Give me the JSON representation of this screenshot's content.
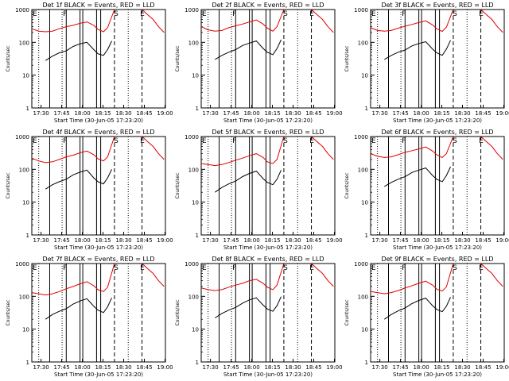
{
  "chart_data": [
    {
      "type": "line",
      "title": "Det 1f BLACK = Events, RED = LLD",
      "ylabel": "Counts/sec",
      "xlabel": "Start Time (30-Jun-05 17:23:20)",
      "x_unit": "minutes since 17:23:20",
      "xlim": [
        0,
        97
      ],
      "ylim": [
        1,
        1000
      ],
      "yscale": "log",
      "xtick_labels": [
        "17:30",
        "17:45",
        "18:00",
        "18:15",
        "18:30",
        "18:45",
        "19:00"
      ],
      "ytick_labels": [
        "1",
        "10",
        "100",
        "1000"
      ],
      "event_markers": [
        "E",
        "F",
        "S",
        "E"
      ],
      "series": [
        {
          "name": "RED = LLD",
          "color": "#e00000",
          "x": [
            0,
            5,
            10,
            15,
            20,
            25,
            30,
            35,
            40,
            45,
            48,
            52,
            55,
            60
          ],
          "y": [
            260,
            220,
            210,
            220,
            260,
            300,
            330,
            380,
            420,
            330,
            250,
            210,
            280,
            1000
          ]
        },
        {
          "name": "BLACK = Events",
          "color": "#000000",
          "x": [
            10,
            15,
            20,
            25,
            30,
            35,
            40,
            45,
            48,
            52,
            55,
            58
          ],
          "y": [
            28,
            38,
            48,
            55,
            75,
            90,
            100,
            60,
            45,
            40,
            60,
            110
          ]
        },
        {
          "name": "RED = LLD (late)",
          "color": "#e00000",
          "x": [
            80,
            84,
            88,
            92,
            96
          ],
          "y": [
            1000,
            700,
            500,
            300,
            200
          ]
        }
      ]
    },
    {
      "type": "line",
      "title": "Det 2f BLACK = Events, RED = LLD",
      "ylabel": "Counts/sec",
      "xlabel": "Start Time (30-Jun-05 17:23:20)",
      "x_unit": "minutes since 17:23:20",
      "xlim": [
        0,
        97
      ],
      "ylim": [
        1,
        1000
      ],
      "yscale": "log",
      "xtick_labels": [
        "17:30",
        "17:45",
        "18:00",
        "18:15",
        "18:30",
        "18:45",
        "19:00"
      ],
      "ytick_labels": [
        "1",
        "10",
        "100",
        "1000"
      ],
      "event_markers": [
        "E",
        "F",
        "S",
        "E"
      ],
      "series": [
        {
          "name": "RED = LLD",
          "color": "#e00000",
          "x": [
            0,
            5,
            10,
            15,
            20,
            25,
            30,
            35,
            40,
            45,
            48,
            52,
            55,
            60
          ],
          "y": [
            300,
            240,
            220,
            230,
            280,
            320,
            360,
            420,
            480,
            360,
            270,
            220,
            300,
            1000
          ]
        },
        {
          "name": "BLACK = Events",
          "color": "#000000",
          "x": [
            10,
            15,
            20,
            25,
            30,
            35,
            40,
            45,
            48,
            52,
            55,
            58
          ],
          "y": [
            30,
            40,
            50,
            60,
            80,
            95,
            110,
            65,
            50,
            42,
            65,
            120
          ]
        },
        {
          "name": "RED = LLD (late)",
          "color": "#e00000",
          "x": [
            80,
            84,
            88,
            92,
            96
          ],
          "y": [
            1000,
            700,
            500,
            300,
            200
          ]
        }
      ]
    },
    {
      "type": "line",
      "title": "Det 3f BLACK = Events, RED = LLD",
      "ylabel": "Counts/sec",
      "xlabel": "Start Time (30-Jun-05 17:23:20)",
      "x_unit": "minutes since 17:23:20",
      "xlim": [
        0,
        97
      ],
      "ylim": [
        1,
        1000
      ],
      "yscale": "log",
      "xtick_labels": [
        "17:30",
        "17:45",
        "18:00",
        "18:15",
        "18:30",
        "18:45",
        "19:00"
      ],
      "ytick_labels": [
        "1",
        "10",
        "100",
        "1000"
      ],
      "event_markers": [
        "E",
        "F",
        "S",
        "E"
      ],
      "series": [
        {
          "name": "RED = LLD",
          "color": "#e00000",
          "x": [
            0,
            5,
            10,
            15,
            20,
            25,
            30,
            35,
            40,
            45,
            48,
            52,
            55,
            60
          ],
          "y": [
            280,
            230,
            220,
            230,
            270,
            310,
            350,
            400,
            450,
            340,
            260,
            215,
            290,
            1000
          ]
        },
        {
          "name": "BLACK = Events",
          "color": "#000000",
          "x": [
            10,
            15,
            20,
            25,
            30,
            35,
            40,
            45,
            48,
            52,
            55,
            58
          ],
          "y": [
            30,
            40,
            50,
            58,
            78,
            92,
            105,
            62,
            48,
            40,
            62,
            115
          ]
        },
        {
          "name": "RED = LLD (late)",
          "color": "#e00000",
          "x": [
            80,
            84,
            88,
            92,
            96
          ],
          "y": [
            1000,
            700,
            500,
            300,
            200
          ]
        }
      ]
    },
    {
      "type": "line",
      "title": "Det 4f BLACK = Events, RED = LLD",
      "ylabel": "Counts/sec",
      "xlabel": "Start Time (30-Jun-05 17:23:20)",
      "x_unit": "minutes since 17:23:20",
      "xlim": [
        0,
        97
      ],
      "ylim": [
        1,
        1000
      ],
      "yscale": "log",
      "xtick_labels": [
        "17:30",
        "17:45",
        "18:00",
        "18:15",
        "18:30",
        "18:45",
        "19:00"
      ],
      "ytick_labels": [
        "1",
        "10",
        "100",
        "1000"
      ],
      "event_markers": [
        "E",
        "F",
        "S",
        "E"
      ],
      "series": [
        {
          "name": "RED = LLD",
          "color": "#e00000",
          "x": [
            0,
            5,
            10,
            15,
            20,
            25,
            30,
            35,
            40,
            45,
            48,
            52,
            55,
            60
          ],
          "y": [
            220,
            180,
            160,
            170,
            200,
            240,
            270,
            320,
            360,
            280,
            210,
            180,
            240,
            1000
          ]
        },
        {
          "name": "BLACK = Events",
          "color": "#000000",
          "x": [
            10,
            15,
            20,
            25,
            30,
            35,
            40,
            45,
            48,
            52,
            55,
            58
          ],
          "y": [
            25,
            34,
            42,
            50,
            68,
            82,
            95,
            55,
            42,
            36,
            55,
            100
          ]
        },
        {
          "name": "RED = LLD (late)",
          "color": "#e00000",
          "x": [
            80,
            84,
            88,
            92,
            96
          ],
          "y": [
            1000,
            700,
            500,
            300,
            200
          ]
        }
      ]
    },
    {
      "type": "line",
      "title": "Det 5f BLACK = Events, RED = LLD",
      "ylabel": "Counts/sec",
      "xlabel": "Start Time (30-Jun-05 17:23:20)",
      "x_unit": "minutes since 17:23:20",
      "xlim": [
        0,
        97
      ],
      "ylim": [
        1,
        1000
      ],
      "yscale": "log",
      "xtick_labels": [
        "17:30",
        "17:45",
        "18:00",
        "18:15",
        "18:30",
        "18:45",
        "19:00"
      ],
      "ytick_labels": [
        "1",
        "10",
        "100",
        "1000"
      ],
      "event_markers": [
        "E",
        "F",
        "S",
        "E"
      ],
      "series": [
        {
          "name": "RED = LLD",
          "color": "#e00000",
          "x": [
            0,
            5,
            10,
            15,
            20,
            25,
            30,
            35,
            40,
            45,
            48,
            52,
            55,
            60
          ],
          "y": [
            150,
            140,
            130,
            140,
            160,
            190,
            220,
            260,
            300,
            230,
            170,
            150,
            200,
            1000
          ]
        },
        {
          "name": "BLACK = Events",
          "color": "#000000",
          "x": [
            10,
            15,
            20,
            25,
            30,
            35,
            40,
            45,
            48,
            52,
            55,
            58
          ],
          "y": [
            20,
            28,
            36,
            44,
            60,
            75,
            88,
            52,
            40,
            34,
            50,
            95
          ]
        },
        {
          "name": "RED = LLD (late)",
          "color": "#e00000",
          "x": [
            80,
            84,
            88,
            92,
            96
          ],
          "y": [
            1000,
            700,
            500,
            300,
            200
          ]
        }
      ]
    },
    {
      "type": "line",
      "title": "Det 6f BLACK = Events, RED = LLD",
      "ylabel": "Counts/sec",
      "xlabel": "Start Time (30-Jun-05 17:23:20)",
      "x_unit": "minutes since 17:23:20",
      "xlim": [
        0,
        97
      ],
      "ylim": [
        1,
        1000
      ],
      "yscale": "log",
      "xtick_labels": [
        "17:30",
        "17:45",
        "18:00",
        "18:15",
        "18:30",
        "18:45",
        "19:00"
      ],
      "ytick_labels": [
        "1",
        "10",
        "100",
        "1000"
      ],
      "event_markers": [
        "E",
        "F",
        "S",
        "E"
      ],
      "series": [
        {
          "name": "RED = LLD",
          "color": "#e00000",
          "x": [
            0,
            5,
            10,
            15,
            20,
            25,
            30,
            35,
            40,
            45,
            48,
            52,
            55,
            60
          ],
          "y": [
            300,
            250,
            230,
            240,
            280,
            330,
            370,
            420,
            480,
            360,
            280,
            230,
            300,
            1000
          ]
        },
        {
          "name": "BLACK = Events",
          "color": "#000000",
          "x": [
            10,
            15,
            20,
            25,
            30,
            35,
            40,
            45,
            48,
            52,
            55,
            58
          ],
          "y": [
            30,
            40,
            50,
            60,
            80,
            95,
            110,
            65,
            50,
            42,
            65,
            120
          ]
        },
        {
          "name": "RED = LLD (late)",
          "color": "#e00000",
          "x": [
            80,
            84,
            88,
            92,
            96
          ],
          "y": [
            1000,
            700,
            500,
            300,
            200
          ]
        }
      ]
    },
    {
      "type": "line",
      "title": "Det 7f BLACK = Events, RED = LLD",
      "ylabel": "Counts/sec",
      "xlabel": "Start Time (30-Jun-05 17:23:20)",
      "x_unit": "minutes since 17:23:20",
      "xlim": [
        0,
        97
      ],
      "ylim": [
        1,
        1000
      ],
      "yscale": "log",
      "xtick_labels": [
        "17:30",
        "17:45",
        "18:00",
        "18:15",
        "18:30",
        "18:45",
        "19:00"
      ],
      "ytick_labels": [
        "1",
        "10",
        "100",
        "1000"
      ],
      "event_markers": [
        "E",
        "F",
        "S",
        "E"
      ],
      "series": [
        {
          "name": "RED = LLD",
          "color": "#e00000",
          "x": [
            0,
            5,
            10,
            15,
            20,
            25,
            30,
            35,
            40,
            45,
            48,
            52,
            55,
            60
          ],
          "y": [
            130,
            120,
            110,
            120,
            140,
            170,
            200,
            240,
            280,
            210,
            160,
            140,
            190,
            1000
          ]
        },
        {
          "name": "BLACK = Events",
          "color": "#000000",
          "x": [
            10,
            15,
            20,
            25,
            30,
            35,
            40,
            45,
            48,
            52,
            55,
            58
          ],
          "y": [
            20,
            28,
            35,
            42,
            58,
            72,
            85,
            50,
            38,
            32,
            48,
            90
          ]
        },
        {
          "name": "RED = LLD (late)",
          "color": "#e00000",
          "x": [
            80,
            84,
            88,
            92,
            96
          ],
          "y": [
            1000,
            700,
            500,
            300,
            200
          ]
        }
      ]
    },
    {
      "type": "line",
      "title": "Det 8f BLACK = Events, RED = LLD",
      "ylabel": "Counts/sec",
      "xlabel": "Start Time (30-Jun-05 17:23:20)",
      "x_unit": "minutes since 17:23:20",
      "xlim": [
        0,
        97
      ],
      "ylim": [
        1,
        1000
      ],
      "yscale": "log",
      "xtick_labels": [
        "17:30",
        "17:45",
        "18:00",
        "18:15",
        "18:30",
        "18:45",
        "19:00"
      ],
      "ytick_labels": [
        "1",
        "10",
        "100",
        "1000"
      ],
      "event_markers": [
        "E",
        "F",
        "S",
        "E"
      ],
      "series": [
        {
          "name": "RED = LLD",
          "color": "#e00000",
          "x": [
            0,
            5,
            10,
            15,
            20,
            25,
            30,
            35,
            40,
            45,
            48,
            52,
            55,
            60
          ],
          "y": [
            180,
            160,
            150,
            160,
            190,
            220,
            250,
            300,
            330,
            250,
            190,
            160,
            220,
            1000
          ]
        },
        {
          "name": "BLACK = Events",
          "color": "#000000",
          "x": [
            10,
            15,
            20,
            25,
            30,
            35,
            40,
            45,
            48,
            52,
            55,
            58
          ],
          "y": [
            22,
            30,
            38,
            46,
            62,
            78,
            90,
            54,
            41,
            35,
            52,
            98
          ]
        },
        {
          "name": "RED = LLD (late)",
          "color": "#e00000",
          "x": [
            80,
            84,
            88,
            92,
            96
          ],
          "y": [
            1000,
            700,
            500,
            300,
            200
          ]
        }
      ]
    },
    {
      "type": "line",
      "title": "Det 9f BLACK = Events, RED = LLD",
      "ylabel": "Counts/sec",
      "xlabel": "Start Time (30-Jun-05 17:23:20)",
      "x_unit": "minutes since 17:23:20",
      "xlim": [
        0,
        97
      ],
      "ylim": [
        1,
        1000
      ],
      "yscale": "log",
      "xtick_labels": [
        "17:30",
        "17:45",
        "18:00",
        "18:15",
        "18:30",
        "18:45",
        "19:00"
      ],
      "ytick_labels": [
        "1",
        "10",
        "100",
        "1000"
      ],
      "event_markers": [
        "E",
        "F",
        "S",
        "E"
      ],
      "series": [
        {
          "name": "RED = LLD",
          "color": "#e00000",
          "x": [
            0,
            5,
            10,
            15,
            20,
            25,
            30,
            35,
            40,
            45,
            48,
            52,
            55,
            60
          ],
          "y": [
            140,
            130,
            120,
            130,
            150,
            180,
            210,
            250,
            290,
            220,
            165,
            145,
            195,
            1000
          ]
        },
        {
          "name": "BLACK = Events",
          "color": "#000000",
          "x": [
            10,
            15,
            20,
            25,
            30,
            35,
            40,
            45,
            48,
            52,
            55,
            58
          ],
          "y": [
            20,
            28,
            36,
            44,
            60,
            75,
            88,
            52,
            40,
            34,
            50,
            95
          ]
        },
        {
          "name": "RED = LLD (late)",
          "color": "#e00000",
          "x": [
            80,
            84,
            88,
            92,
            96
          ],
          "y": [
            1000,
            700,
            500,
            300,
            200
          ]
        }
      ]
    }
  ]
}
